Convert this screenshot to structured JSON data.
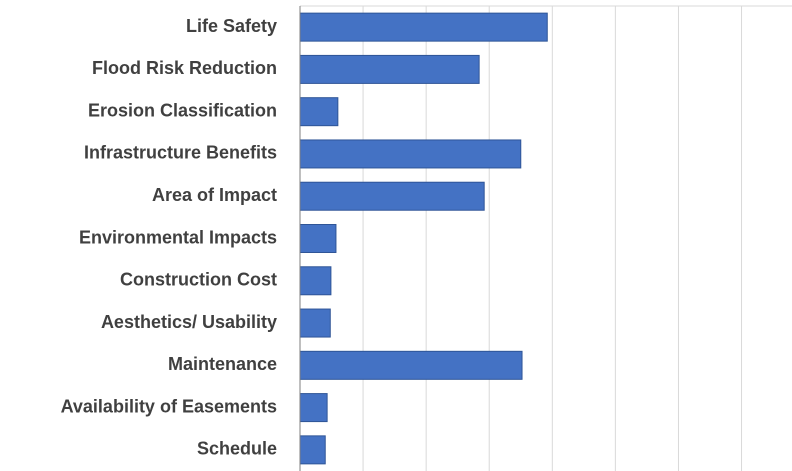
{
  "chart_data": {
    "type": "barh",
    "categories": [
      "Life Safety",
      "Flood Risk Reduction",
      "Erosion Classification",
      "Infrastructure Benefits",
      "Area of Impact",
      "Environmental Impacts",
      "Construction Cost",
      "Aesthetics/ Usability",
      "Maintenance",
      "Availability of Easements",
      "Schedule"
    ],
    "values": [
      3.92,
      2.84,
      0.6,
      3.5,
      2.92,
      0.57,
      0.49,
      0.48,
      3.52,
      0.43,
      0.4
    ],
    "color": "#4472c4",
    "xlim": [
      0,
      7.8
    ],
    "xticks": [
      0,
      1,
      2,
      3,
      4,
      5,
      6,
      7
    ],
    "grid": true
  }
}
